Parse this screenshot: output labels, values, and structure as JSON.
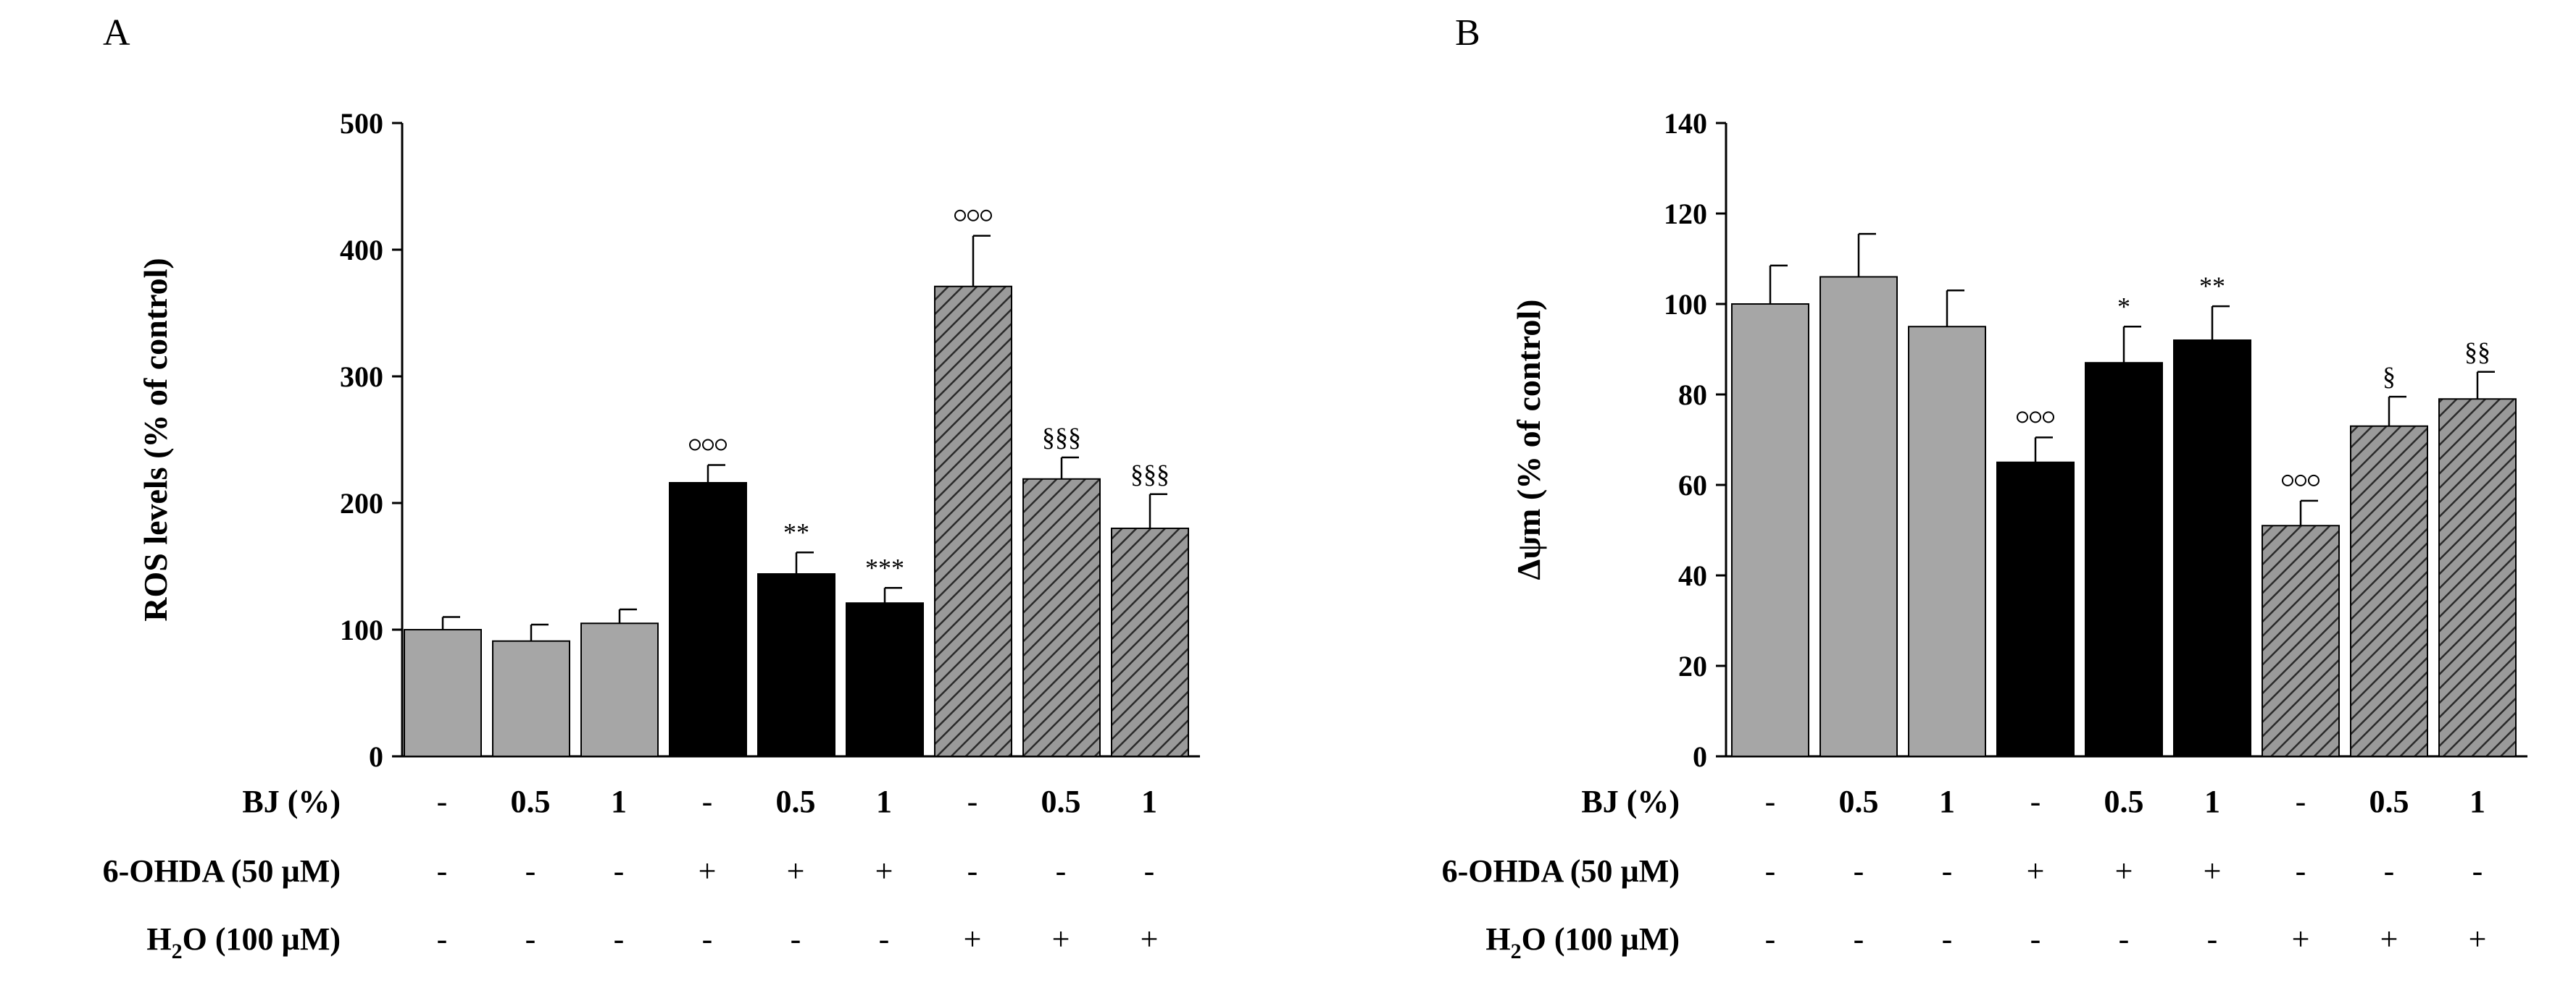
{
  "colors": {
    "gray": "#a6a6a6",
    "black": "#000000",
    "hatch_bg": "#9a9a9a",
    "hatch_line": "#2a2a2a"
  },
  "chart_data": [
    {
      "panel": "A",
      "type": "bar",
      "ylabel": "ROS levels (% of control)",
      "ylim": [
        0,
        500
      ],
      "yticks": [
        "0",
        "100",
        "200",
        "300",
        "400",
        "500"
      ],
      "values": [
        100,
        91,
        105,
        216,
        144,
        121,
        371,
        219,
        180
      ],
      "errors": [
        10,
        13,
        11,
        14,
        17,
        12,
        40,
        17,
        27
      ],
      "fills": [
        "gray",
        "gray",
        "gray",
        "black",
        "black",
        "black",
        "hatch",
        "hatch",
        "hatch"
      ],
      "annotations": [
        "",
        "",
        "",
        "ooo",
        "**",
        "***",
        "ooo",
        "§§§",
        "§§§"
      ]
    },
    {
      "panel": "B",
      "type": "bar",
      "ylabel": "Δψm (% of control)",
      "ylim": [
        0,
        140
      ],
      "yticks": [
        "0",
        "20",
        "40",
        "60",
        "80",
        "100",
        "120",
        "140"
      ],
      "values": [
        100,
        106,
        95,
        65,
        87,
        92,
        51,
        73,
        79
      ],
      "errors": [
        8.5,
        9.5,
        8,
        5.5,
        8,
        7.5,
        5.5,
        6.5,
        6
      ],
      "fills": [
        "gray",
        "gray",
        "gray",
        "black",
        "black",
        "black",
        "hatch",
        "hatch",
        "hatch"
      ],
      "annotations": [
        "",
        "",
        "",
        "ooo",
        "*",
        "**",
        "ooo",
        "§",
        "§§"
      ]
    }
  ],
  "conditions": {
    "bj_label": "BJ (%)",
    "ohda_label": "6-OHDA (50 µM)",
    "h2o2_label_H": "H",
    "h2o2_label_sub": "2",
    "h2o2_label_O": "O",
    "h2o2_label_rest": " (100 µM)",
    "bj_values": [
      "-",
      "0.5",
      "1",
      "-",
      "0.5",
      "1",
      "-",
      "0.5",
      "1"
    ],
    "ohda_values": [
      "-",
      "-",
      "-",
      "+",
      "+",
      "+",
      "-",
      "-",
      "-"
    ],
    "h2o2_values": [
      "-",
      "-",
      "-",
      "-",
      "-",
      "-",
      "+",
      "+",
      "+"
    ]
  }
}
